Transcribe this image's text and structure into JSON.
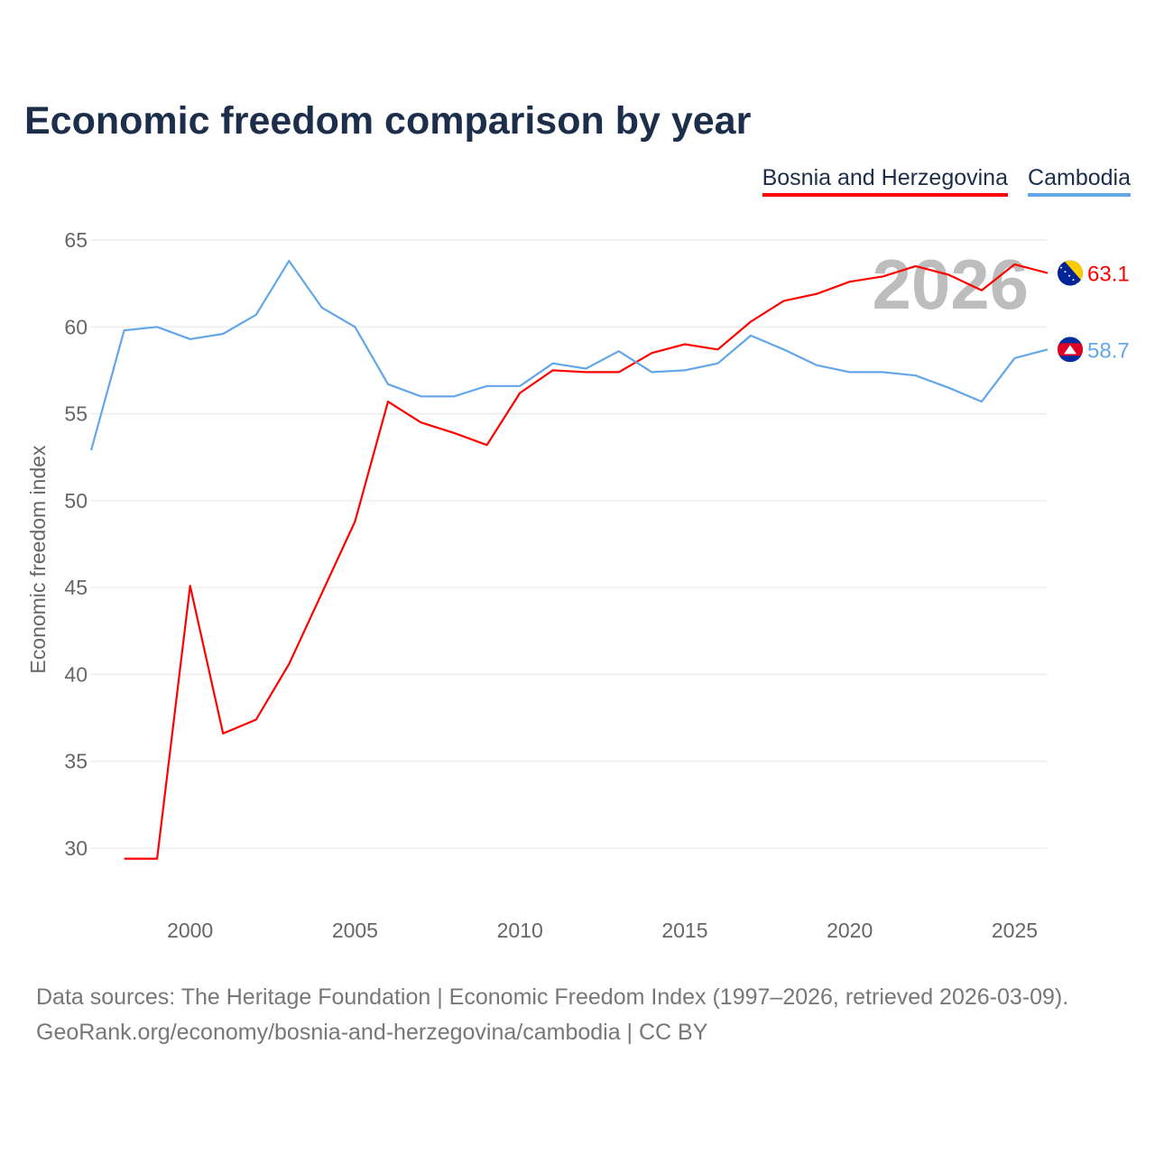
{
  "title": "Economic freedom comparison by year",
  "footer": {
    "line1": "Data sources: The Heritage Foundation | Economic Freedom Index (1997–2026, retrieved 2026-03-09).",
    "line2": "GeoRank.org/economy/bosnia-and-herzegovina/cambodia | CC BY"
  },
  "chart_data": {
    "type": "line",
    "title": "Economic freedom comparison by year",
    "xlabel": "",
    "ylabel": "Economic freedom index",
    "xlim": [
      1997,
      2026
    ],
    "ylim": [
      26.5,
      65
    ],
    "yticks": [
      30,
      35,
      40,
      45,
      50,
      55,
      60,
      65
    ],
    "xticks": [
      2000,
      2005,
      2010,
      2015,
      2020,
      2025
    ],
    "grid": true,
    "legend_position": "top-right",
    "watermark_year": "2026",
    "x": [
      1997,
      1998,
      1999,
      2000,
      2001,
      2002,
      2003,
      2004,
      2005,
      2006,
      2007,
      2008,
      2009,
      2010,
      2011,
      2012,
      2013,
      2014,
      2015,
      2016,
      2017,
      2018,
      2019,
      2020,
      2021,
      2022,
      2023,
      2024,
      2025,
      2026
    ],
    "series": [
      {
        "name": "Bosnia and Herzegovina",
        "color": "#ff0000",
        "end_label": "63.1",
        "values": [
          null,
          29.4,
          29.4,
          45.1,
          36.6,
          37.4,
          40.6,
          44.7,
          48.8,
          55.7,
          54.5,
          53.9,
          53.2,
          56.2,
          57.5,
          57.4,
          57.4,
          58.5,
          59.0,
          58.7,
          60.3,
          61.5,
          61.9,
          62.6,
          62.9,
          63.5,
          63.0,
          62.1,
          63.6,
          63.1
        ]
      },
      {
        "name": "Cambodia",
        "color": "#63a6ea",
        "end_label": "58.7",
        "values": [
          52.9,
          59.8,
          60.0,
          59.3,
          59.6,
          60.7,
          63.8,
          61.1,
          60.0,
          56.7,
          56.0,
          56.0,
          56.6,
          56.6,
          57.9,
          57.6,
          58.6,
          57.4,
          57.5,
          57.9,
          59.5,
          58.7,
          57.8,
          57.4,
          57.4,
          57.2,
          56.5,
          55.7,
          58.2,
          58.7
        ]
      }
    ]
  }
}
